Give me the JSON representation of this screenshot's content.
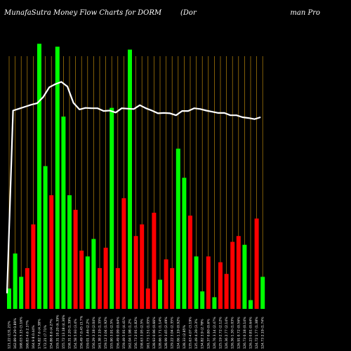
{
  "header": {
    "left": "MunafaSutra  Money Flow  Charts for DORM",
    "mid": "(Dor",
    "right": "man  Pro"
  },
  "chart_data": {
    "type": "bar",
    "colors": {
      "up": "#00ff00",
      "down": "#ff0000",
      "line": "#ffffff",
      "grid": "#b8860b",
      "background": "#000000"
    },
    "x": [
      "121.22 (131.21%",
      "162.89 0.29 0.89%",
      "168.03 5.15 (3.16%",
      "166.83 4.6 2.37%",
      "164.9 8.0.44%",
      "174.82 7.6 (4.38%",
      "172.21 (7.71%",
      "154.86 8.6 (4.27%",
      "159.31 10.20 (6.39%",
      "155.72 13.18 (4.36%",
      "158.31 2.20 (1.39%",
      "154.58 5.93 (3.4%",
      "156.49 7.0.45 (3.7%",
      "159.01 3.46 (2.2%",
      "156.29 3.18 (2.04%",
      "161.38 2.19 (1.35%",
      "159.12 3.04 (1.92%",
      "155.90 3.91 (2.5%",
      "156.49 0.99 (0.64%",
      "159.49 5.91 (4.41%",
      "162.04 1.98 (1.2%",
      "156.73 2.91 (1.82%",
      "158.63 3.95 (2.5%",
      "161.73 1.51 (1.05%",
      "128.93 0.96 (0.66%",
      "128.66 1.71 (1.14%",
      "128.99 3.65 (2.49%",
      "129.22 3.04 (2.35%",
      "124.06 1.19 (0.92%",
      "128.33 (2.85%",
      "135.63 4.07 (3.19%",
      "135.49 4.39 (3.3%",
      "134.82 3.9 (2.78%",
      "126.37 0.80 (0.6%",
      "126.76 3.14 (2.47%",
      "125.19 2.72 (2.12%",
      "126.36 2.77 (2.14%",
      "126.36 1.30 (1.03%",
      "126.91 0.72 (0.56%",
      "126.73 0.18 (0.14%",
      "126.23 0.81 (0.64%",
      "124.72 1.77 (1.38%",
      "124.73 2.19 (1.74%"
    ],
    "volume": [
      7,
      19,
      11,
      14,
      29,
      91,
      49,
      39,
      90,
      66,
      39,
      34,
      20,
      18,
      24,
      14,
      21,
      69,
      14,
      38,
      89,
      25,
      29,
      7,
      33,
      10,
      17,
      14,
      55,
      45,
      32,
      18,
      6,
      18,
      4,
      16,
      12,
      23,
      25,
      22,
      3,
      31,
      11
    ],
    "direction": [
      "up",
      "up",
      "up",
      "down",
      "down",
      "up",
      "up",
      "down",
      "up",
      "up",
      "up",
      "down",
      "down",
      "up",
      "up",
      "down",
      "down",
      "up",
      "down",
      "down",
      "up",
      "down",
      "down",
      "down",
      "down",
      "up",
      "down",
      "down",
      "up",
      "up",
      "down",
      "up",
      "up",
      "down",
      "up",
      "down",
      "down",
      "down",
      "down",
      "up",
      "up",
      "down",
      "up"
    ],
    "price": [
      49.0,
      96.0,
      96.5,
      97.0,
      97.5,
      97.9,
      99.5,
      102.0,
      102.8,
      103.4,
      102.2,
      98.0,
      96.3,
      96.7,
      96.6,
      96.6,
      95.9,
      96.0,
      95.5,
      96.6,
      96.5,
      96.4,
      97.4,
      96.6,
      96.0,
      95.3,
      95.4,
      95.3,
      94.8,
      95.9,
      95.9,
      96.6,
      96.4,
      96.0,
      95.7,
      95.4,
      95.4,
      94.8,
      94.8,
      94.3,
      94.1,
      93.8,
      94.3
    ],
    "bar_max": 100,
    "price_range": [
      45,
      110
    ],
    "grid": "vertical"
  }
}
